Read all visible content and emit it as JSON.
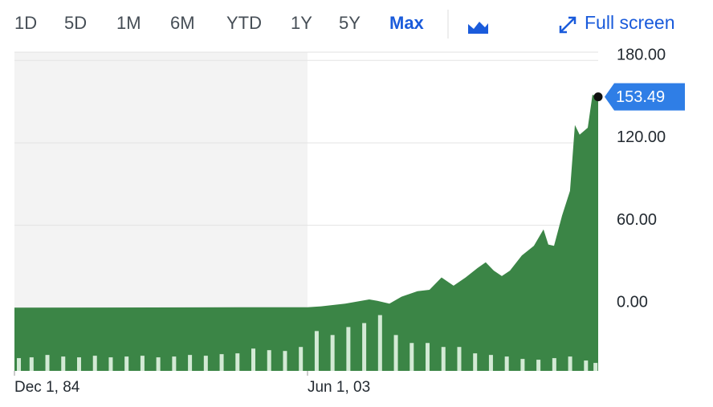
{
  "toolbar": {
    "ranges": [
      "1D",
      "5D",
      "1M",
      "6M",
      "YTD",
      "1Y",
      "5Y",
      "Max"
    ],
    "selected_index": 7,
    "full_screen": "Full screen"
  },
  "chart_data": {
    "type": "area",
    "series": [
      {
        "name": "Price",
        "color": "#3b8546",
        "x": [
          1984.92,
          1999.21,
          2003.42,
          2004.28,
          2005.8,
          2007.32,
          2007.83,
          2008.59,
          2009.35,
          2010.36,
          2011.12,
          2011.88,
          2012.64,
          2013.4,
          2014.16,
          2014.67,
          2015.18,
          2015.69,
          2016.2,
          2016.95,
          2017.71,
          2018.32,
          2018.62,
          2018.98,
          2019.49,
          2019.99,
          2020.3,
          2020.6,
          2021.11,
          2021.41,
          2021.77
        ],
        "values": [
          0,
          0.3,
          0.3,
          1,
          3,
          6,
          5,
          3,
          8,
          12,
          13,
          22,
          16,
          22,
          29,
          33,
          27,
          23,
          27,
          38,
          45,
          57,
          46,
          45,
          67,
          85,
          133,
          126,
          131,
          155,
          153.49
        ]
      },
      {
        "name": "Volume",
        "color": "#d3ead5",
        "axis": "y2",
        "x": [
          1985.2,
          1986,
          1987,
          1988,
          1989,
          1990,
          1991,
          1992,
          1993,
          1994,
          1995,
          1996,
          1997,
          1998,
          1999,
          2000,
          2001,
          2002,
          2003,
          2004,
          2005,
          2006,
          2007,
          2008,
          2009,
          2010,
          2011,
          2012,
          2013,
          2014,
          2015,
          2016,
          2017,
          2018,
          2019,
          2020,
          2021,
          2021.6
        ],
        "values": [
          16,
          17,
          20,
          18,
          17,
          19,
          17,
          18,
          19,
          17,
          18,
          20,
          19,
          21,
          22,
          28,
          26,
          25,
          30,
          50,
          45,
          55,
          60,
          70,
          45,
          35,
          35,
          30,
          30,
          22,
          20,
          18,
          15,
          14,
          16,
          18,
          13,
          10
        ]
      }
    ],
    "xlim": [
      1984.92,
      2021.77
    ],
    "xticks": [
      {
        "value": 1984.92,
        "label": "Dec 1, 84"
      },
      {
        "value": 2003.42,
        "label": "Jun 1, 03"
      }
    ],
    "ylim": [
      -46,
      186
    ],
    "yticks": [
      {
        "value": 0,
        "label": "0.00"
      },
      {
        "value": 60,
        "label": "60.00"
      },
      {
        "value": 120,
        "label": "120.00"
      },
      {
        "value": 180,
        "label": "180.00"
      }
    ],
    "y2lim": [
      0,
      400
    ],
    "grid": true
  }
}
